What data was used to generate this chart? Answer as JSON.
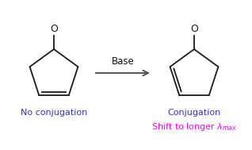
{
  "bg_color": "#ffffff",
  "arrow_label": "Base",
  "label_left": "No conjugation",
  "label_right": "Conjugation",
  "label_color_blue": "#3333cc",
  "label_color_magenta": "#ff00ff",
  "line_color": "#1a1a1a",
  "arrow_color": "#555555",
  "arrow_label_color": "#111111",
  "figsize": [
    3.18,
    1.89
  ],
  "dpi": 100
}
